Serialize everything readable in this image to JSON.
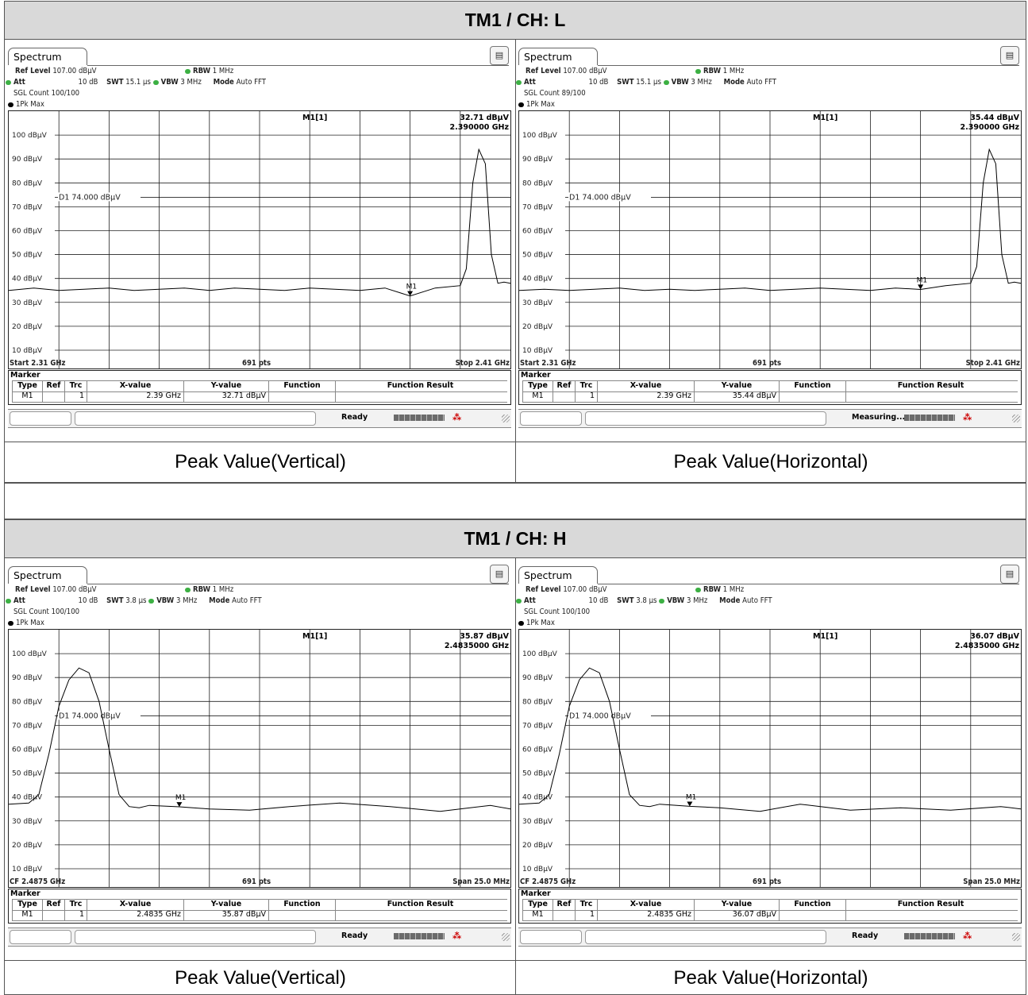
{
  "sections": [
    {
      "title": "TM1 / CH: L"
    },
    {
      "title": "TM1 / CH: H"
    }
  ],
  "colors": {
    "trace": "#000000",
    "grid": "#222222",
    "title_bg": "#d9d9d9",
    "indicator_green": "#3cb043"
  },
  "panels": [
    {
      "tab": "Spectrum",
      "ref_level_label": "Ref Level",
      "ref_level": "107.00 dBµV",
      "att_label": "Att",
      "att": "10 dB",
      "swt_label": "SWT",
      "swt": "15.1 µs",
      "rbw_label": "RBW",
      "rbw": "1 MHz",
      "vbw_label": "VBW",
      "vbw": "3 MHz",
      "mode_label": "Mode",
      "mode": "Auto FFT",
      "sgl_count": "SGL Count 100/100",
      "trace_label": "1Pk Max",
      "marker_readout_name": "M1[1]",
      "marker_readout_level": "32.71 dBµV",
      "marker_readout_freq": "2.390000 GHz",
      "display_line": "D1  74.000 dBµV",
      "marker_label": "M1",
      "footer_left": "Start 2.31 GHz",
      "footer_center": "691 pts",
      "footer_right": "Stop 2.41 GHz",
      "marker_title": "Marker",
      "table_headers": [
        "Type",
        "Ref",
        "Trc",
        "X-value",
        "Y-value",
        "Function",
        "Function Result"
      ],
      "table_row": [
        "M1",
        "",
        "1",
        "2.39 GHz",
        "32.71 dBµV",
        "",
        ""
      ],
      "status": "Ready",
      "caption": "Peak Value(Vertical)"
    },
    {
      "tab": "Spectrum",
      "ref_level_label": "Ref Level",
      "ref_level": "107.00 dBµV",
      "att_label": "Att",
      "att": "10 dB",
      "swt_label": "SWT",
      "swt": "15.1 µs",
      "rbw_label": "RBW",
      "rbw": "1 MHz",
      "vbw_label": "VBW",
      "vbw": "3 MHz",
      "mode_label": "Mode",
      "mode": "Auto FFT",
      "sgl_count": "SGL Count 89/100",
      "trace_label": "1Pk Max",
      "marker_readout_name": "M1[1]",
      "marker_readout_level": "35.44 dBµV",
      "marker_readout_freq": "2.390000 GHz",
      "display_line": "D1  74.000 dBµV",
      "marker_label": "M1",
      "footer_left": "Start 2.31 GHz",
      "footer_center": "691 pts",
      "footer_right": "Stop 2.41 GHz",
      "marker_title": "Marker",
      "table_headers": [
        "Type",
        "Ref",
        "Trc",
        "X-value",
        "Y-value",
        "Function",
        "Function Result"
      ],
      "table_row": [
        "M1",
        "",
        "1",
        "2.39 GHz",
        "35.44 dBµV",
        "",
        ""
      ],
      "status": "Measuring...",
      "caption": "Peak Value(Horizontal)"
    },
    {
      "tab": "Spectrum",
      "ref_level_label": "Ref Level",
      "ref_level": "107.00 dBµV",
      "att_label": "Att",
      "att": "10 dB",
      "swt_label": "SWT",
      "swt": "3.8 µs",
      "rbw_label": "RBW",
      "rbw": "1 MHz",
      "vbw_label": "VBW",
      "vbw": "3 MHz",
      "mode_label": "Mode",
      "mode": "Auto FFT",
      "sgl_count": "SGL Count 100/100",
      "trace_label": "1Pk Max",
      "marker_readout_name": "M1[1]",
      "marker_readout_level": "35.87 dBµV",
      "marker_readout_freq": "2.4835000 GHz",
      "display_line": "D1  74.000 dBµV",
      "marker_label": "M1",
      "footer_left": "CF 2.4875 GHz",
      "footer_center": "691 pts",
      "footer_right": "Span 25.0 MHz",
      "marker_title": "Marker",
      "table_headers": [
        "Type",
        "Ref",
        "Trc",
        "X-value",
        "Y-value",
        "Function",
        "Function Result"
      ],
      "table_row": [
        "M1",
        "",
        "1",
        "2.4835 GHz",
        "35.87 dBµV",
        "",
        ""
      ],
      "status": "Ready",
      "caption": "Peak Value(Vertical)"
    },
    {
      "tab": "Spectrum",
      "ref_level_label": "Ref Level",
      "ref_level": "107.00 dBµV",
      "att_label": "Att",
      "att": "10 dB",
      "swt_label": "SWT",
      "swt": "3.8 µs",
      "rbw_label": "RBW",
      "rbw": "1 MHz",
      "vbw_label": "VBW",
      "vbw": "3 MHz",
      "mode_label": "Mode",
      "mode": "Auto FFT",
      "sgl_count": "SGL Count 100/100",
      "trace_label": "1Pk Max",
      "marker_readout_name": "M1[1]",
      "marker_readout_level": "36.07 dBµV",
      "marker_readout_freq": "2.4835000 GHz",
      "display_line": "D1  74.000 dBµV",
      "marker_label": "M1",
      "footer_left": "CF 2.4875 GHz",
      "footer_center": "691 pts",
      "footer_right": "Span 25.0 MHz",
      "marker_title": "Marker",
      "table_headers": [
        "Type",
        "Ref",
        "Trc",
        "X-value",
        "Y-value",
        "Function",
        "Function Result"
      ],
      "table_row": [
        "M1",
        "",
        "1",
        "2.4835 GHz",
        "36.07 dBµV",
        "",
        ""
      ],
      "status": "Ready",
      "caption": "Peak Value(Horizontal)"
    }
  ],
  "chart_data": [
    {
      "type": "line",
      "ylabel": "",
      "xlabel": "",
      "y_ticks": [
        "100 dBµV",
        "90 dBµV",
        "80 dBµV",
        "70 dBµV",
        "60 dBµV",
        "50 dBµV",
        "40 dBµV",
        "30 dBµV",
        "20 dBµV",
        "10 dBµV"
      ],
      "ylim": [
        7,
        110
      ],
      "xlim": [
        2.31,
        2.41
      ],
      "x_unit": "GHz",
      "display_line": 74,
      "marker": {
        "x": 2.39,
        "y": 32.71
      },
      "series": [
        {
          "x": [
            2.31,
            2.315,
            2.32,
            2.325,
            2.33,
            2.335,
            2.34,
            2.345,
            2.35,
            2.355,
            2.36,
            2.365,
            2.37,
            2.375,
            2.38,
            2.385,
            2.39,
            2.395,
            2.4,
            2.4012,
            2.4025,
            2.4037,
            2.405,
            2.4062,
            2.4075,
            2.4087,
            2.41
          ],
          "y": [
            35,
            36,
            35,
            35.5,
            36,
            35,
            35.5,
            36,
            35,
            36,
            35.5,
            35,
            36,
            35.5,
            35,
            36,
            32.7,
            36,
            37,
            44,
            80,
            94,
            88,
            50,
            38,
            38.5,
            38
          ]
        }
      ]
    },
    {
      "type": "line",
      "ylabel": "",
      "xlabel": "",
      "y_ticks": [
        "100 dBµV",
        "90 dBµV",
        "80 dBµV",
        "70 dBµV",
        "60 dBµV",
        "50 dBµV",
        "40 dBµV",
        "30 dBµV",
        "20 dBµV",
        "10 dBµV"
      ],
      "ylim": [
        7,
        110
      ],
      "xlim": [
        2.31,
        2.41
      ],
      "x_unit": "GHz",
      "display_line": 74,
      "marker": {
        "x": 2.39,
        "y": 35.44
      },
      "series": [
        {
          "x": [
            2.31,
            2.315,
            2.32,
            2.325,
            2.33,
            2.335,
            2.34,
            2.345,
            2.35,
            2.355,
            2.36,
            2.365,
            2.37,
            2.375,
            2.38,
            2.385,
            2.39,
            2.395,
            2.4,
            2.4012,
            2.4025,
            2.4037,
            2.405,
            2.4062,
            2.4075,
            2.4087,
            2.41
          ],
          "y": [
            35,
            35.5,
            35,
            35.5,
            36,
            35,
            35.5,
            35,
            35.5,
            36,
            35,
            35.5,
            36,
            35.5,
            35,
            36,
            35.4,
            37,
            38,
            45,
            80,
            94,
            88,
            50,
            38,
            38.5,
            38
          ]
        }
      ]
    },
    {
      "type": "line",
      "ylabel": "",
      "xlabel": "",
      "y_ticks": [
        "100 dBµV",
        "90 dBµV",
        "80 dBµV",
        "70 dBµV",
        "60 dBµV",
        "50 dBµV",
        "40 dBµV",
        "30 dBµV",
        "20 dBµV",
        "10 dBµV"
      ],
      "ylim": [
        7,
        110
      ],
      "xlim": [
        2.475,
        2.5
      ],
      "x_unit": "GHz",
      "display_line": 74,
      "marker": {
        "x": 2.4835,
        "y": 35.87
      },
      "series": [
        {
          "x": [
            2.475,
            2.476,
            2.4765,
            2.477,
            2.4775,
            2.478,
            2.4785,
            2.479,
            2.4795,
            2.48,
            2.4805,
            2.481,
            2.4815,
            2.482,
            2.4835,
            2.485,
            2.487,
            2.489,
            2.4915,
            2.494,
            2.4965,
            2.499,
            2.5
          ],
          "y": [
            37,
            37.5,
            41,
            58,
            78,
            89,
            94,
            92,
            80,
            60,
            41,
            36,
            35.5,
            36.5,
            35.9,
            35,
            34.5,
            36,
            37.5,
            36,
            34,
            36.5,
            35
          ]
        }
      ]
    },
    {
      "type": "line",
      "ylabel": "",
      "xlabel": "",
      "y_ticks": [
        "100 dBµV",
        "90 dBµV",
        "80 dBµV",
        "70 dBµV",
        "60 dBµV",
        "50 dBµV",
        "40 dBµV",
        "30 dBµV",
        "20 dBµV",
        "10 dBµV"
      ],
      "ylim": [
        7,
        110
      ],
      "xlim": [
        2.475,
        2.5
      ],
      "x_unit": "GHz",
      "display_line": 74,
      "marker": {
        "x": 2.4835,
        "y": 36.07
      },
      "series": [
        {
          "x": [
            2.475,
            2.476,
            2.4765,
            2.477,
            2.4775,
            2.478,
            2.4785,
            2.479,
            2.4795,
            2.48,
            2.4805,
            2.481,
            2.4815,
            2.482,
            2.4835,
            2.485,
            2.487,
            2.489,
            2.4915,
            2.494,
            2.4965,
            2.499,
            2.5
          ],
          "y": [
            37,
            37.5,
            41,
            58,
            78,
            89,
            94,
            92,
            80,
            60,
            41,
            36.5,
            36,
            37,
            36.1,
            35.5,
            34,
            37,
            34.5,
            35.5,
            34.5,
            36,
            35
          ]
        }
      ]
    }
  ]
}
